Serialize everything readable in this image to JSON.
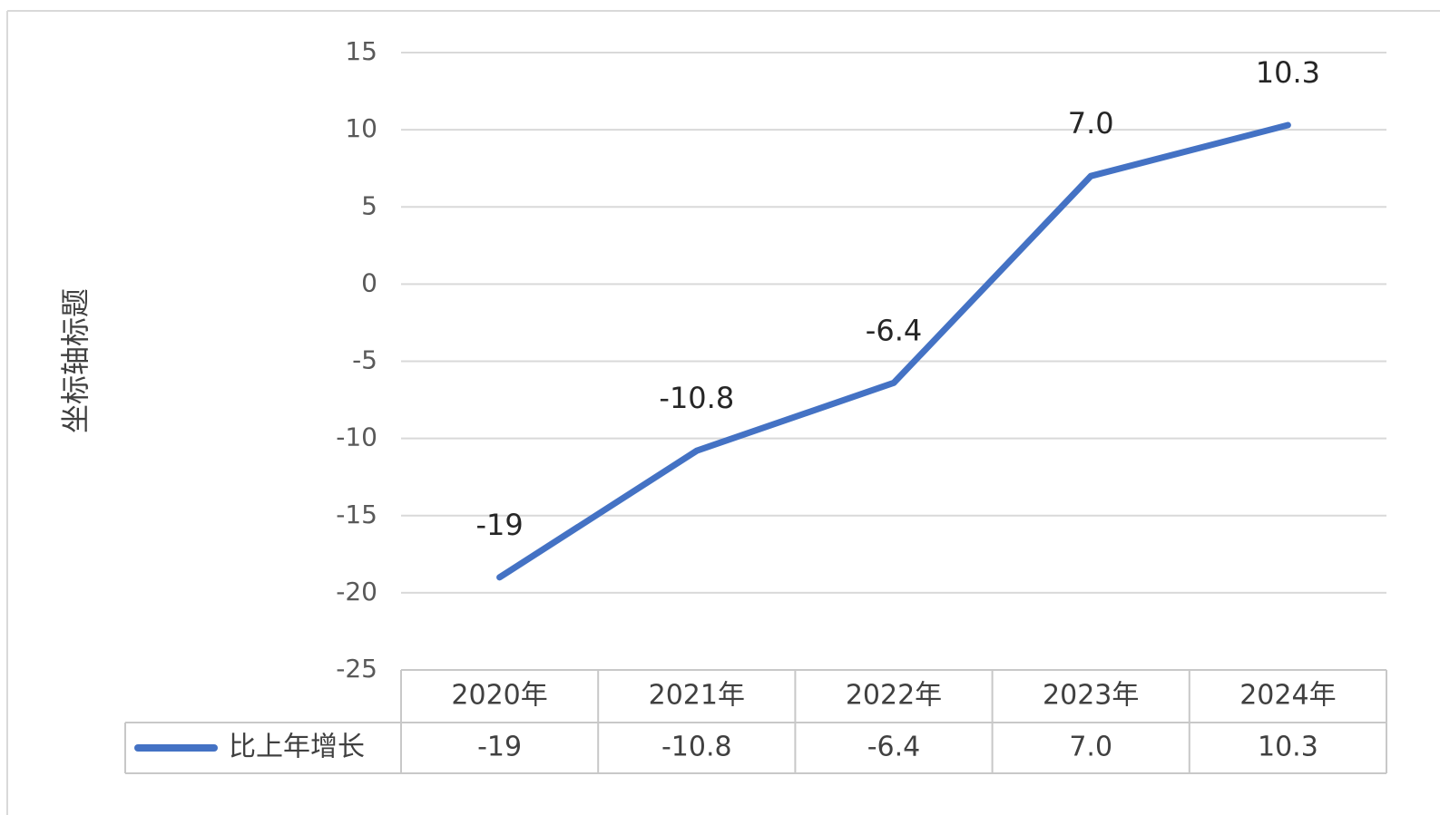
{
  "chart_data": {
    "type": "line",
    "categories": [
      "2020年",
      "2021年",
      "2022年",
      "2023年",
      "2024年"
    ],
    "series": [
      {
        "name": "比上年增长",
        "color": "#4472c4",
        "values": [
          -19,
          -10.8,
          -6.4,
          7.0,
          10.3
        ],
        "value_labels": [
          "-19",
          "-10.8",
          "-6.4",
          "7.0",
          "10.3"
        ]
      }
    ],
    "y_label": "坐标轴标题",
    "ylim": [
      -25,
      15
    ],
    "yticks": [
      -25,
      -20,
      -15,
      -10,
      -5,
      0,
      5,
      10,
      15
    ],
    "grid": true,
    "data_table": true
  }
}
